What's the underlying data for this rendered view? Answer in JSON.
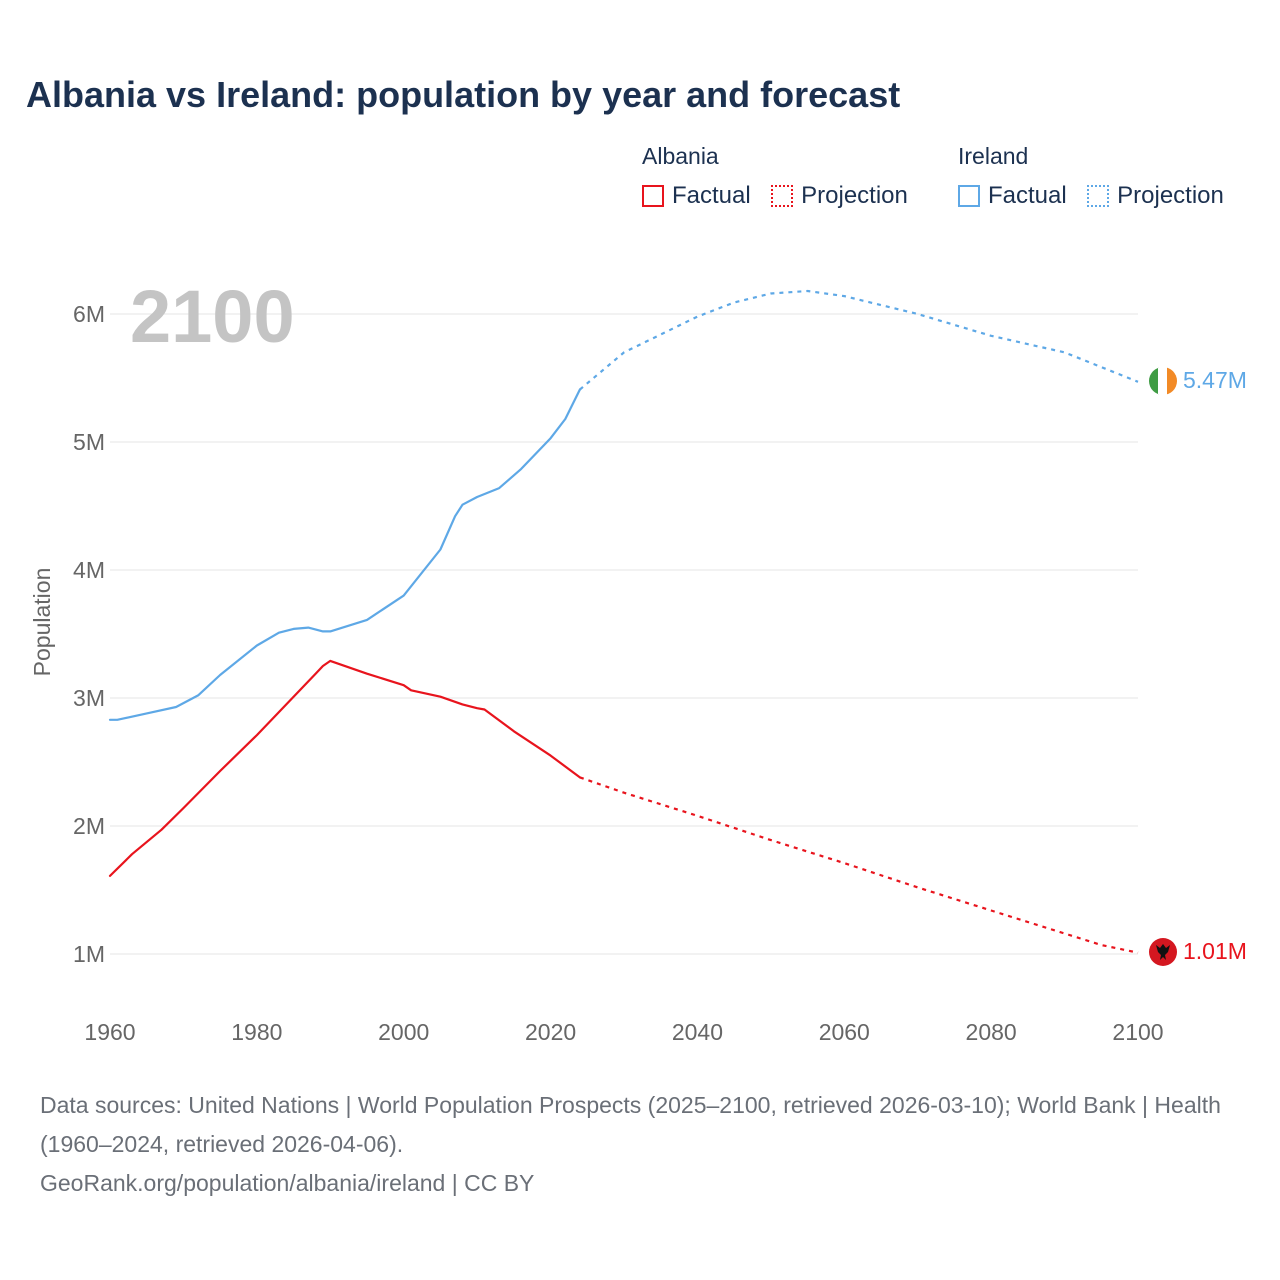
{
  "title": "Albania vs Ireland: population by year and forecast",
  "legend": {
    "groups": [
      {
        "name": "Albania",
        "factual": "Factual",
        "projection": "Projection",
        "color": "#e8141d"
      },
      {
        "name": "Ireland",
        "factual": "Factual",
        "projection": "Projection",
        "color": "#5ea8e6"
      }
    ]
  },
  "year_watermark": "2100",
  "end_labels": {
    "albania": "1.01M",
    "ireland": "5.47M"
  },
  "footer": {
    "sources": "Data sources: United Nations | World Population Prospects (2025–2100, retrieved 2026-03-10); World Bank | Health (1960–2024, retrieved 2026-04-06).",
    "credit": "GeoRank.org/population/albania/ireland | CC BY"
  },
  "colors": {
    "albania": "#e8141d",
    "ireland": "#5ea8e6",
    "grid": "#e6e6e6",
    "axis_text": "#666666",
    "watermark": "#c4c4c4"
  },
  "chart_data": {
    "type": "line",
    "title": "Albania vs Ireland: population by year and forecast",
    "xlabel": "",
    "ylabel": "Population",
    "xlim": [
      1960,
      2100
    ],
    "ylim": [
      0.5,
      6.5
    ],
    "x_ticks": [
      1960,
      1980,
      2000,
      2020,
      2040,
      2060,
      2080,
      2100
    ],
    "x_tick_labels": [
      "1960",
      "1980",
      "2000",
      "2020",
      "2040",
      "2060",
      "2080",
      "2100"
    ],
    "y_ticks": [
      1,
      2,
      3,
      4,
      5,
      6
    ],
    "y_tick_labels": [
      "1M",
      "2M",
      "3M",
      "4M",
      "5M",
      "6M"
    ],
    "unit": "millions",
    "series": [
      {
        "name": "Albania",
        "segment": "Factual",
        "x": [
          1960,
          1963,
          1967,
          1970,
          1975,
          1980,
          1985,
          1988,
          1989,
          1990,
          1995,
          2000,
          2001,
          2005,
          2008,
          2010,
          2011,
          2015,
          2020,
          2024
        ],
        "values": [
          1.61,
          1.78,
          1.97,
          2.14,
          2.43,
          2.71,
          3.01,
          3.19,
          3.25,
          3.29,
          3.19,
          3.1,
          3.06,
          3.01,
          2.95,
          2.92,
          2.91,
          2.74,
          2.55,
          2.38
        ]
      },
      {
        "name": "Albania",
        "segment": "Projection",
        "x": [
          2024,
          2030,
          2040,
          2050,
          2060,
          2070,
          2080,
          2090,
          2095,
          2100
        ],
        "values": [
          2.38,
          2.26,
          2.08,
          1.89,
          1.71,
          1.52,
          1.34,
          1.16,
          1.07,
          1.01
        ]
      },
      {
        "name": "Ireland",
        "segment": "Factual",
        "x": [
          1960,
          1961,
          1965,
          1969,
          1972,
          1975,
          1980,
          1983,
          1985,
          1987,
          1989,
          1990,
          1995,
          2000,
          2005,
          2007,
          2008,
          2010,
          2013,
          2016,
          2020,
          2022,
          2024
        ],
        "values": [
          2.83,
          2.83,
          2.88,
          2.93,
          3.02,
          3.18,
          3.41,
          3.51,
          3.54,
          3.55,
          3.52,
          3.52,
          3.61,
          3.8,
          4.16,
          4.42,
          4.51,
          4.57,
          4.64,
          4.79,
          5.03,
          5.18,
          5.41
        ]
      },
      {
        "name": "Ireland",
        "segment": "Projection",
        "x": [
          2024,
          2030,
          2040,
          2045,
          2050,
          2055,
          2060,
          2070,
          2080,
          2090,
          2100
        ],
        "values": [
          5.41,
          5.7,
          5.98,
          6.09,
          6.16,
          6.18,
          6.14,
          6.0,
          5.83,
          5.7,
          5.47
        ]
      }
    ]
  }
}
